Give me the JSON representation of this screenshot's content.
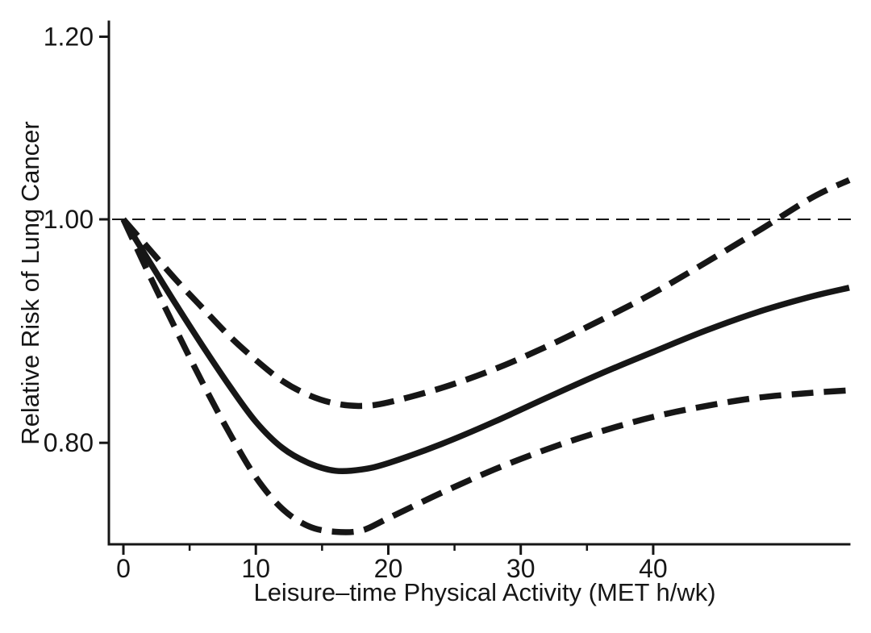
{
  "figure": {
    "background": "#ffffff",
    "ink_color": "#161616"
  },
  "chart_data": {
    "type": "line",
    "title": "",
    "xlabel": "Leisure–time Physical Activity (MET h/wk)",
    "ylabel": "Relative Risk of Lung Cancer",
    "x_axis": {
      "ticks_major": [
        0,
        10,
        20,
        30,
        40
      ],
      "tick_labels_major": [
        "0",
        "10",
        "20",
        "30",
        "40"
      ],
      "ticks_minor": [
        5,
        15,
        25,
        35
      ],
      "range": [
        0,
        54.8
      ]
    },
    "y_axis": {
      "scale": "log",
      "ticks": [
        1.2,
        1.0,
        0.8
      ],
      "tick_labels": [
        "1.20",
        "1.00",
        "0.80"
      ],
      "range": [
        0.722,
        1.219
      ]
    },
    "reference_line": {
      "y": 1.0,
      "style": "thin-dashed"
    },
    "legend": "none",
    "grid": "off",
    "series": [
      {
        "name": "relative-risk-estimate",
        "style": "solid",
        "points": [
          [
            0,
            1.0
          ],
          [
            2,
            0.958
          ],
          [
            4,
            0.918
          ],
          [
            6,
            0.881
          ],
          [
            8,
            0.847
          ],
          [
            10,
            0.817
          ],
          [
            12,
            0.796
          ],
          [
            14,
            0.784
          ],
          [
            16,
            0.778
          ],
          [
            18,
            0.779
          ],
          [
            20,
            0.784
          ],
          [
            24,
            0.799
          ],
          [
            28,
            0.817
          ],
          [
            32,
            0.837
          ],
          [
            36,
            0.857
          ],
          [
            40,
            0.876
          ],
          [
            44,
            0.895
          ],
          [
            48,
            0.912
          ],
          [
            52,
            0.926
          ],
          [
            54.8,
            0.934
          ]
        ]
      },
      {
        "name": "upper-95ci",
        "style": "dashed",
        "points": [
          [
            0,
            1.0
          ],
          [
            2,
            0.97
          ],
          [
            4,
            0.941
          ],
          [
            6,
            0.915
          ],
          [
            8,
            0.89
          ],
          [
            10,
            0.869
          ],
          [
            12,
            0.851
          ],
          [
            14,
            0.839
          ],
          [
            16,
            0.832
          ],
          [
            18,
            0.83
          ],
          [
            20,
            0.833
          ],
          [
            24,
            0.845
          ],
          [
            28,
            0.861
          ],
          [
            32,
            0.881
          ],
          [
            36,
            0.904
          ],
          [
            40,
            0.929
          ],
          [
            44,
            0.958
          ],
          [
            48,
            0.989
          ],
          [
            52,
            1.022
          ],
          [
            54.8,
            1.04
          ]
        ]
      },
      {
        "name": "lower-95ci",
        "style": "dashed",
        "points": [
          [
            0,
            1.0
          ],
          [
            2,
            0.945
          ],
          [
            4,
            0.895
          ],
          [
            6,
            0.849
          ],
          [
            8,
            0.808
          ],
          [
            10,
            0.773
          ],
          [
            12,
            0.749
          ],
          [
            14,
            0.736
          ],
          [
            16,
            0.732
          ],
          [
            18,
            0.733
          ],
          [
            20,
            0.742
          ],
          [
            24,
            0.761
          ],
          [
            28,
            0.779
          ],
          [
            32,
            0.795
          ],
          [
            36,
            0.809
          ],
          [
            40,
            0.821
          ],
          [
            44,
            0.83
          ],
          [
            48,
            0.837
          ],
          [
            52,
            0.841
          ],
          [
            54.8,
            0.843
          ]
        ]
      }
    ]
  }
}
